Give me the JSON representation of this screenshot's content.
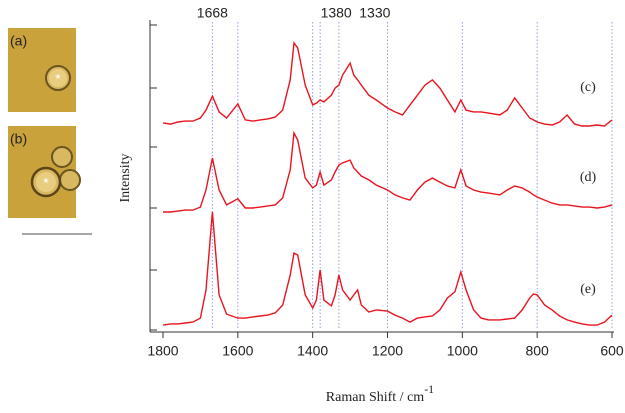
{
  "chart_data": {
    "type": "line",
    "xlabel": "Raman Shift / cm",
    "xlabel_superscript": "-1",
    "ylabel": "Intensity",
    "xlim": [
      1800,
      600
    ],
    "ylim": [
      0,
      100
    ],
    "xticks": [
      1800,
      1600,
      1400,
      1200,
      1000,
      800,
      600
    ],
    "reference_lines": [
      1668,
      1600,
      1400,
      1380,
      1330,
      1200,
      1000,
      800,
      600
    ],
    "annotations": [
      {
        "value": 1668,
        "label": "1668"
      },
      {
        "value": 1380,
        "label": "1380"
      },
      {
        "value": 1330,
        "label": "1330"
      }
    ],
    "images": [
      {
        "label": "(a)",
        "marker": "*"
      },
      {
        "label": "(b)",
        "marker": "*"
      }
    ],
    "x": [
      1800,
      1780,
      1760,
      1740,
      1720,
      1700,
      1685,
      1668,
      1650,
      1630,
      1600,
      1580,
      1560,
      1540,
      1520,
      1500,
      1480,
      1460,
      1450,
      1440,
      1420,
      1400,
      1390,
      1380,
      1370,
      1350,
      1340,
      1330,
      1320,
      1300,
      1290,
      1280,
      1270,
      1250,
      1230,
      1200,
      1180,
      1160,
      1140,
      1120,
      1100,
      1080,
      1060,
      1040,
      1020,
      1004,
      990,
      970,
      950,
      930,
      900,
      880,
      860,
      840,
      820,
      810,
      800,
      780,
      760,
      740,
      720,
      700,
      680,
      660,
      640,
      620,
      600
    ],
    "series": [
      {
        "name": "(c)",
        "color": "#e8141e",
        "values": [
          67.9,
          67.5,
          68.2,
          68.5,
          68.5,
          69.5,
          72.1,
          76.7,
          71.5,
          69.5,
          74.1,
          68.9,
          68.5,
          68.9,
          69.2,
          69.8,
          72.1,
          82.0,
          94.1,
          92.5,
          80.3,
          73.8,
          74.4,
          75.4,
          74.8,
          77.0,
          79.3,
          80.3,
          83.6,
          87.5,
          83.6,
          82.0,
          80.3,
          77.0,
          75.4,
          72.8,
          71.5,
          70.5,
          73.8,
          77.0,
          80.3,
          82.0,
          79.3,
          75.4,
          71.5,
          75.4,
          72.1,
          71.5,
          71.5,
          71.1,
          70.5,
          72.1,
          76.1,
          72.8,
          69.5,
          68.9,
          68.2,
          67.5,
          67.2,
          68.2,
          70.5,
          67.5,
          66.9,
          66.9,
          67.2,
          66.9,
          68.9
        ]
      },
      {
        "name": "(d)",
        "color": "#e8141e",
        "values": [
          38.7,
          38.7,
          39.0,
          39.3,
          39.3,
          40.3,
          45.9,
          56.4,
          45.9,
          41.0,
          43.0,
          40.0,
          40.0,
          40.3,
          40.7,
          41.0,
          43.3,
          52.5,
          64.6,
          62.3,
          49.8,
          46.6,
          47.5,
          51.8,
          47.5,
          49.2,
          51.8,
          54.1,
          54.8,
          55.7,
          53.1,
          51.8,
          50.5,
          49.2,
          47.5,
          45.9,
          44.3,
          43.3,
          42.6,
          45.9,
          48.5,
          49.8,
          48.5,
          47.2,
          46.6,
          52.5,
          47.2,
          45.9,
          45.2,
          44.9,
          44.3,
          45.9,
          47.2,
          46.6,
          45.2,
          44.3,
          43.6,
          42.6,
          41.6,
          41.0,
          41.0,
          40.7,
          40.3,
          40.3,
          40.0,
          40.3,
          41.0
        ]
      },
      {
        "name": "(e)",
        "color": "#e8141e",
        "values": [
          1.6,
          2.0,
          2.0,
          2.3,
          2.6,
          3.9,
          13.1,
          38.7,
          11.5,
          5.2,
          3.9,
          3.9,
          4.3,
          4.6,
          4.9,
          5.6,
          8.2,
          18.0,
          25.2,
          24.6,
          11.5,
          7.2,
          9.8,
          19.7,
          9.8,
          7.9,
          11.5,
          18.0,
          13.1,
          9.8,
          11.5,
          13.1,
          8.2,
          5.9,
          6.6,
          6.2,
          4.9,
          3.9,
          2.6,
          3.9,
          4.3,
          4.6,
          6.6,
          10.5,
          12.5,
          19.0,
          13.1,
          6.6,
          3.9,
          3.3,
          3.3,
          3.6,
          3.9,
          6.6,
          10.5,
          11.8,
          11.5,
          8.2,
          6.6,
          4.6,
          3.3,
          2.6,
          2.0,
          1.6,
          1.6,
          2.6,
          4.9
        ]
      }
    ]
  }
}
